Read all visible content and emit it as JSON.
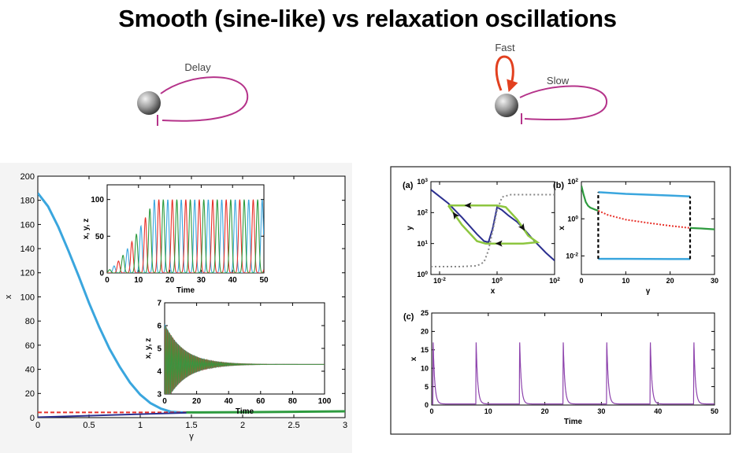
{
  "title": "Smooth (sine-like) vs relaxation oscillations",
  "motifs": {
    "left_label": "Delay",
    "right_fast_label": "Fast",
    "right_slow_label": "Slow",
    "loop_color": "#b5338a",
    "fast_color": "#e2401f"
  },
  "colors": {
    "blue": "#3aa6de",
    "green": "#2e9b3f",
    "red": "#e8312a",
    "navy": "#2b2f8f",
    "lime": "#8dc63f",
    "gray": "#888888",
    "purple": "#8e44ad"
  },
  "chart_data": [
    {
      "id": "left-main",
      "type": "line",
      "xlabel": "γ",
      "ylabel": "x",
      "xlim": [
        0,
        3
      ],
      "ylim": [
        0,
        200
      ],
      "xticks": [
        0,
        0.5,
        1,
        1.5,
        2,
        2.5,
        3
      ],
      "xtick_labels": [
        "0",
        "0.5",
        "1",
        "1.5",
        "2",
        "2.5",
        "3"
      ],
      "yticks": [
        0,
        20,
        40,
        60,
        80,
        100,
        120,
        140,
        160,
        180,
        200
      ],
      "series": [
        {
          "style": "blue-solid",
          "x": [
            0,
            0.1,
            0.2,
            0.3,
            0.4,
            0.5,
            0.6,
            0.7,
            0.8,
            0.9,
            1.0,
            1.1,
            1.2,
            1.3,
            1.4,
            1.45
          ],
          "y": [
            186,
            175,
            158,
            138,
            117,
            95,
            75,
            57,
            42,
            29,
            19,
            12,
            7.5,
            4.8,
            4.3,
            4.3
          ]
        },
        {
          "style": "green-solid",
          "x": [
            1.45,
            2.0,
            2.5,
            3.0
          ],
          "y": [
            4.3,
            4.5,
            4.8,
            5.2
          ]
        },
        {
          "style": "red-dashed",
          "x": [
            0,
            1.45
          ],
          "y": [
            4.3,
            4.3
          ]
        },
        {
          "style": "navy-solid",
          "x": [
            0,
            1.45
          ],
          "y": [
            0.3,
            4.0
          ]
        }
      ]
    },
    {
      "id": "left-inset-1",
      "type": "line",
      "xlabel": "Time",
      "ylabel": "x, y, z",
      "xlim": [
        0,
        50
      ],
      "ylim": [
        0,
        120
      ],
      "xticks": [
        0,
        10,
        20,
        30,
        40,
        50
      ],
      "yticks": [
        0,
        50,
        100
      ],
      "period": 4.3,
      "amplitude_growth": {
        "start": 3,
        "settle_time": 15,
        "peak": 100,
        "trough": 0
      },
      "series_styles": [
        "blue",
        "red",
        "green"
      ]
    },
    {
      "id": "left-inset-2",
      "type": "line",
      "xlabel": "Time",
      "ylabel": "x, y, z",
      "xlim": [
        0,
        100
      ],
      "ylim": [
        3,
        7
      ],
      "xticks": [
        0,
        20,
        40,
        60,
        80,
        100
      ],
      "yticks": [
        3,
        4,
        5,
        6,
        7
      ],
      "equilibrium": 4.3,
      "initial_amplitude": 1.8,
      "decay_time": 12,
      "period": 0.9,
      "series_styles": [
        "blue",
        "red",
        "green"
      ]
    },
    {
      "id": "panel-a",
      "panel_label": "(a)",
      "type": "line",
      "xlabel": "x",
      "ylabel": "y",
      "x_scale": "log",
      "y_scale": "log",
      "xlim": [
        0.005,
        100
      ],
      "ylim": [
        1,
        1000
      ],
      "xticks": [
        0.01,
        1,
        100
      ],
      "xtick_labels": [
        [
          "10",
          "-2"
        ],
        [
          "10",
          "0"
        ],
        [
          "10",
          "2"
        ]
      ],
      "yticks": [
        1,
        10,
        100,
        1000
      ],
      "ytick_labels": [
        [
          "10",
          "0"
        ],
        [
          "10",
          "1"
        ],
        [
          "10",
          "2"
        ],
        [
          "10",
          "3"
        ]
      ],
      "series": [
        {
          "style": "navy",
          "x": [
            0.005,
            0.02,
            0.06,
            0.2,
            0.35,
            0.5,
            0.7,
            1.0,
            1.5,
            2.5,
            5,
            10,
            20,
            50,
            100
          ],
          "y": [
            550,
            200,
            70,
            20,
            12,
            11,
            30,
            150,
            120,
            80,
            50,
            25,
            12,
            5,
            2.8
          ]
        },
        {
          "style": "gray-dotted",
          "x": [
            0.005,
            0.05,
            0.2,
            0.35,
            0.5,
            0.7,
            1.0,
            1.5,
            3,
            100
          ],
          "y": [
            1.8,
            1.8,
            1.9,
            2.5,
            6,
            25,
            120,
            320,
            380,
            380
          ]
        },
        {
          "style": "lime-cycle",
          "x": [
            0.02,
            0.05,
            0.2,
            0.6,
            1.0,
            2.0,
            5,
            12,
            25,
            8,
            2,
            0.7,
            0.4,
            0.2,
            0.06,
            0.02
          ],
          "y": [
            170,
            170,
            170,
            170,
            170,
            150,
            60,
            18,
            11,
            10,
            10,
            10,
            10,
            12,
            40,
            170
          ]
        }
      ]
    },
    {
      "id": "panel-b",
      "panel_label": "(b)",
      "type": "line",
      "xlabel": "γ",
      "ylabel": "x",
      "y_scale": "log",
      "xlim": [
        0,
        30
      ],
      "ylim": [
        0.001,
        100
      ],
      "xticks": [
        0,
        10,
        20,
        30
      ],
      "yticks": [
        0.01,
        1,
        100
      ],
      "ytick_labels": [
        [
          "10",
          "-2"
        ],
        [
          "10",
          "0"
        ],
        [
          "10",
          "2"
        ]
      ],
      "series": [
        {
          "style": "green",
          "x": [
            0,
            0.5,
            1,
            1.5,
            2,
            3,
            3.8
          ],
          "y": [
            60,
            20,
            8,
            5,
            4,
            3.2,
            2.7
          ]
        },
        {
          "style": "red-dotted",
          "x": [
            3.8,
            6,
            10,
            15,
            20,
            24.5
          ],
          "y": [
            2.7,
            1.6,
            0.9,
            0.6,
            0.42,
            0.32
          ]
        },
        {
          "style": "green",
          "x": [
            24.5,
            27,
            30
          ],
          "y": [
            0.32,
            0.3,
            0.27
          ]
        },
        {
          "style": "blue",
          "x": [
            3.8,
            10,
            20,
            24.5
          ],
          "y": [
            27,
            22,
            18,
            16
          ]
        },
        {
          "style": "blue",
          "x": [
            3.8,
            10,
            20,
            24.5
          ],
          "y": [
            0.007,
            0.007,
            0.0068,
            0.0068
          ]
        },
        {
          "style": "black-dashed",
          "x": [
            3.8,
            3.8
          ],
          "y": [
            0.007,
            27
          ]
        },
        {
          "style": "black-dashed",
          "x": [
            24.5,
            24.5
          ],
          "y": [
            0.0068,
            16
          ]
        }
      ]
    },
    {
      "id": "panel-c",
      "panel_label": "(c)",
      "type": "line",
      "xlabel": "Time",
      "ylabel": "x",
      "xlim": [
        0,
        50
      ],
      "ylim": [
        0,
        25
      ],
      "xticks": [
        0,
        10,
        20,
        30,
        40,
        50
      ],
      "yticks": [
        0,
        5,
        10,
        15,
        20,
        25
      ],
      "spikes": [
        0.2,
        7.8,
        15.5,
        23.2,
        30.9,
        38.6,
        46.3
      ],
      "spike_height": 21,
      "baseline": 0.3,
      "series_styles": [
        "purple"
      ]
    }
  ]
}
